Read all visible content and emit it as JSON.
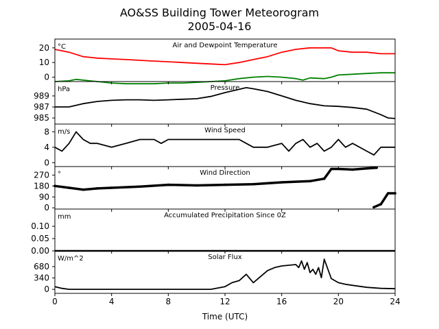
{
  "figure": {
    "title_line1": "AO&SS Building Tower Meteorogram",
    "title_line2": "2005-04-16",
    "xlabel": "Time (UTC)",
    "x_ticks": [
      "0",
      "4",
      "8",
      "12",
      "16",
      "20",
      "24"
    ]
  },
  "chart_data": [
    {
      "type": "line",
      "title": "Air and Dewpoint Temperature",
      "unit": "°C",
      "xlim": [
        0,
        24
      ],
      "ylim": [
        -3,
        26
      ],
      "yticks": [
        20,
        10,
        0
      ],
      "ytick_labels": [
        "20",
        "10",
        "0"
      ],
      "series": [
        {
          "color": "#ff0000",
          "x": [
            0,
            1,
            2,
            3,
            4,
            5,
            6,
            7,
            8,
            9,
            10,
            11,
            12,
            13,
            14,
            15,
            16,
            17,
            18,
            19,
            19.5,
            20,
            21,
            22,
            23,
            24
          ],
          "y": [
            19,
            17,
            14,
            13,
            12.5,
            12,
            11.5,
            11,
            10.5,
            10,
            9.5,
            9,
            8.5,
            10,
            12,
            14,
            17,
            19,
            20,
            20,
            20,
            18,
            17,
            17,
            16,
            16
          ]
        },
        {
          "color": "#008000",
          "x": [
            0,
            1,
            1.5,
            2,
            3,
            4,
            5,
            6,
            7,
            8,
            9,
            10,
            11,
            12,
            13,
            14,
            15,
            16,
            17,
            17.5,
            18,
            19,
            19.5,
            20,
            21,
            22,
            23,
            24
          ],
          "y": [
            -3,
            -2.5,
            -1.5,
            -2,
            -3,
            -4,
            -4.5,
            -4.5,
            -4.5,
            -4,
            -4,
            -3.5,
            -3,
            -2.5,
            -1,
            0,
            0.5,
            0,
            -1,
            -2,
            -0.5,
            -1,
            0,
            1.5,
            2,
            2.5,
            3,
            3
          ]
        }
      ]
    },
    {
      "type": "line",
      "title": "Pressure",
      "unit": "hPa",
      "xlim": [
        0,
        24
      ],
      "ylim": [
        983.9,
        991.6
      ],
      "yticks": [
        989,
        987,
        985
      ],
      "ytick_labels": [
        "989",
        "987",
        "985"
      ],
      "series": [
        {
          "color": "#000000",
          "x": [
            0,
            1,
            2,
            3,
            4,
            5,
            6,
            7,
            8,
            9,
            10,
            11,
            12,
            13,
            13.5,
            14,
            15,
            16,
            17,
            18,
            19,
            20,
            21,
            22,
            23,
            23.5,
            24
          ],
          "y": [
            987,
            987,
            987.6,
            988,
            988.2,
            988.3,
            988.3,
            988.2,
            988.3,
            988.4,
            988.5,
            988.9,
            989.6,
            990.2,
            990.5,
            990.3,
            989.8,
            989.0,
            988.2,
            987.6,
            987.2,
            987.1,
            986.9,
            986.6,
            985.6,
            985.0,
            984.9
          ]
        }
      ]
    },
    {
      "type": "line",
      "title": "Wind Speed",
      "unit": "m/s",
      "xlim": [
        0,
        24
      ],
      "ylim": [
        -1,
        10
      ],
      "yticks": [
        8,
        4,
        0
      ],
      "ytick_labels": [
        "8",
        "4",
        "0"
      ],
      "series": [
        {
          "color": "#000000",
          "x": [
            0,
            0.5,
            1,
            1.5,
            2,
            2.5,
            3,
            4,
            5,
            6,
            7,
            7.5,
            8,
            9,
            10,
            11,
            12,
            13,
            13.5,
            14,
            15,
            16,
            16.5,
            17,
            17.5,
            18,
            18.5,
            19,
            19.5,
            20,
            20.5,
            21,
            22,
            22.5,
            23,
            24
          ],
          "y": [
            4,
            3,
            5,
            8,
            6,
            5,
            5,
            4,
            5,
            6,
            6,
            5,
            6,
            6,
            6,
            6,
            6,
            6,
            5,
            4,
            4,
            5,
            3,
            5,
            6,
            4,
            5,
            3,
            4,
            6,
            4,
            5,
            3,
            2,
            4,
            4
          ]
        }
      ]
    },
    {
      "type": "scatter",
      "title": "Wind Direction",
      "unit": "°",
      "xlim": [
        0,
        24
      ],
      "ylim": [
        -10,
        340
      ],
      "yticks": [
        270,
        180,
        90,
        0
      ],
      "ytick_labels": [
        "270",
        "180",
        "90",
        "0"
      ],
      "series": [
        {
          "color": "#000000",
          "x": [
            0,
            1,
            2,
            3,
            4,
            6,
            8,
            10,
            12,
            14,
            16,
            18,
            19,
            19.5,
            20,
            21,
            22,
            22.7
          ],
          "y": [
            180,
            165,
            150,
            160,
            165,
            175,
            190,
            185,
            190,
            195,
            210,
            220,
            240,
            320,
            320,
            315,
            325,
            330
          ]
        },
        {
          "color": "#000000",
          "x": [
            22.5,
            23,
            23.5,
            24
          ],
          "y": [
            5,
            30,
            120,
            120
          ]
        }
      ]
    },
    {
      "type": "line",
      "title": "Accumulated Precipitation Since 0Z",
      "unit": "mm",
      "xlim": [
        0,
        24
      ],
      "ylim": [
        0,
        0.17
      ],
      "yticks": [
        0.1,
        0.05,
        0.0
      ],
      "ytick_labels": [
        "0.10",
        "0.05",
        "0.00"
      ],
      "series": [
        {
          "color": "#000000",
          "x": [
            0,
            24
          ],
          "y": [
            0,
            0
          ]
        }
      ]
    },
    {
      "type": "line",
      "title": "Solar Flux",
      "unit": "W/m^2",
      "xlim": [
        0,
        24
      ],
      "ylim": [
        -120,
        1150
      ],
      "yticks": [
        680,
        340,
        0
      ],
      "ytick_labels": [
        "680",
        "340",
        "0"
      ],
      "series": [
        {
          "color": "#000000",
          "x": [
            0,
            0.5,
            1,
            6,
            11,
            12,
            12.5,
            13,
            13.5,
            14,
            14.5,
            15,
            15.5,
            16,
            16.5,
            17,
            17.2,
            17.4,
            17.6,
            17.8,
            18,
            18.2,
            18.4,
            18.6,
            18.8,
            19,
            19.5,
            20,
            20.5,
            21,
            22,
            23,
            24
          ],
          "y": [
            80,
            30,
            0,
            0,
            0,
            80,
            200,
            260,
            450,
            200,
            380,
            560,
            650,
            700,
            720,
            740,
            650,
            850,
            600,
            800,
            500,
            600,
            450,
            650,
            350,
            900,
            320,
            200,
            150,
            120,
            60,
            30,
            20
          ]
        }
      ]
    }
  ]
}
